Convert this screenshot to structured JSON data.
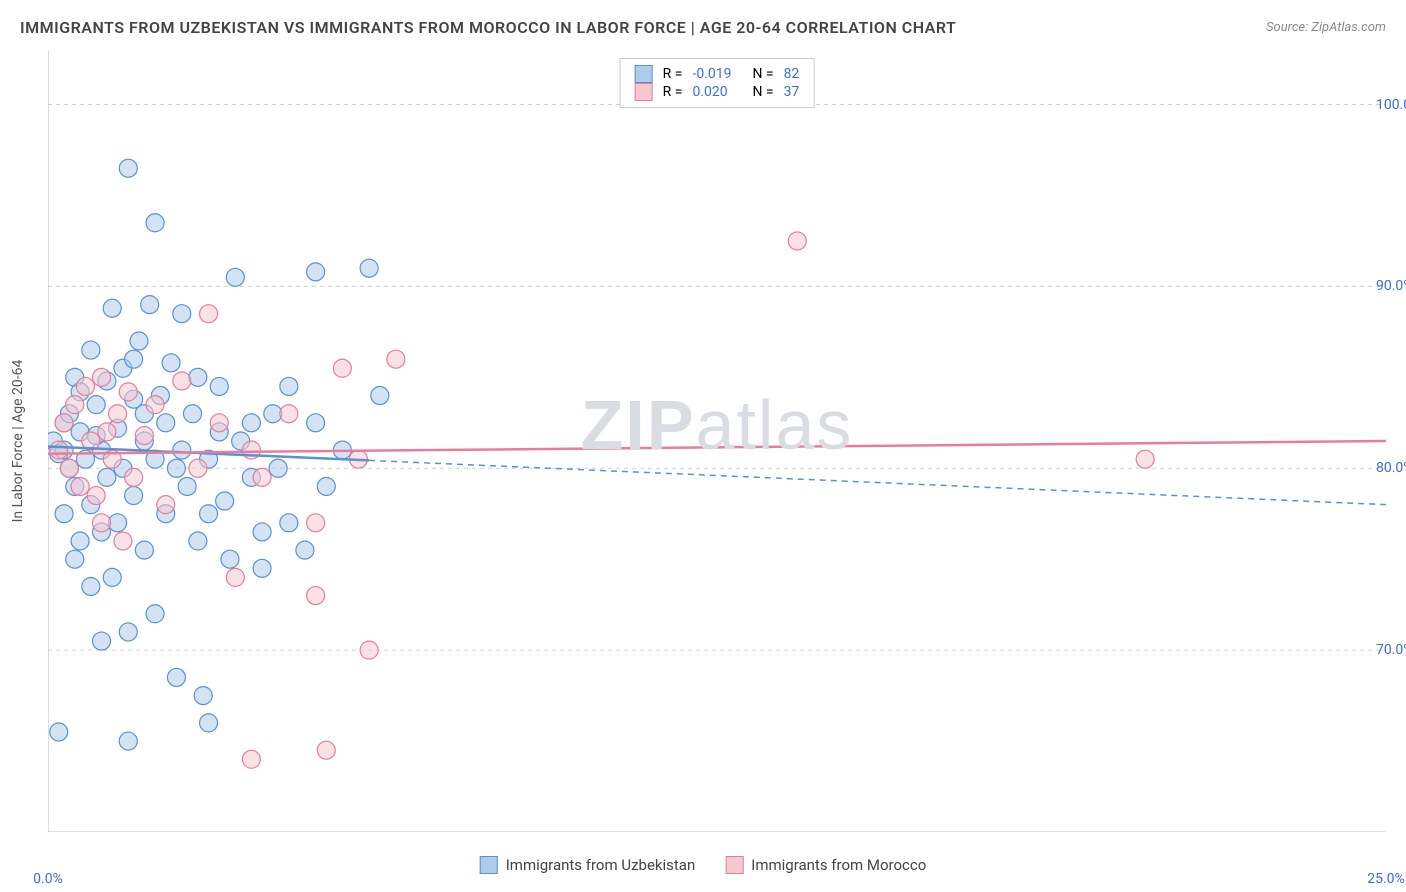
{
  "title": "IMMIGRANTS FROM UZBEKISTAN VS IMMIGRANTS FROM MOROCCO IN LABOR FORCE | AGE 20-64 CORRELATION CHART",
  "source": "Source: ZipAtlas.com",
  "watermark_bold": "ZIP",
  "watermark_light": "atlas",
  "y_axis_label": "In Labor Force | Age 20-64",
  "chart": {
    "type": "scatter",
    "xlim": [
      0,
      25
    ],
    "ylim": [
      60,
      103
    ],
    "x_ticks": [
      0,
      2,
      5,
      7.5,
      10,
      12.5,
      15,
      17.5,
      20,
      22.5,
      25
    ],
    "x_tick_labels": {
      "0": "0.0%",
      "25": "25.0%"
    },
    "y_gridlines": [
      70,
      80,
      90,
      100
    ],
    "y_tick_labels": {
      "70": "70.0%",
      "80": "80.0%",
      "90": "90.0%",
      "100": "100.0%"
    },
    "marker_radius": 9,
    "marker_opacity": 0.55,
    "grid_color": "#d0d0d0",
    "axis_color": "#bbbbbb",
    "background_color": "#ffffff"
  },
  "series": [
    {
      "name": "Immigrants from Uzbekistan",
      "color_fill": "#aecce9",
      "color_stroke": "#5a92d0",
      "R": "-0.019",
      "N": "82",
      "trend": {
        "x1": 0,
        "y1": 81.2,
        "x2": 25,
        "y2": 78.0,
        "solid_until_x": 6
      },
      "points": [
        [
          0.1,
          81.5
        ],
        [
          0.2,
          80.8
        ],
        [
          0.3,
          82.5
        ],
        [
          0.3,
          81.0
        ],
        [
          0.4,
          83.0
        ],
        [
          0.5,
          79.0
        ],
        [
          0.5,
          85.0
        ],
        [
          0.6,
          84.2
        ],
        [
          0.6,
          82.0
        ],
        [
          0.7,
          80.5
        ],
        [
          0.8,
          86.5
        ],
        [
          0.8,
          78.0
        ],
        [
          0.9,
          83.5
        ],
        [
          1.0,
          81.0
        ],
        [
          1.0,
          76.5
        ],
        [
          1.1,
          84.8
        ],
        [
          1.1,
          79.5
        ],
        [
          1.2,
          88.8
        ],
        [
          1.3,
          82.2
        ],
        [
          1.3,
          77.0
        ],
        [
          1.4,
          85.5
        ],
        [
          1.4,
          80.0
        ],
        [
          1.5,
          96.5
        ],
        [
          1.5,
          71.0
        ],
        [
          1.6,
          83.8
        ],
        [
          1.6,
          78.5
        ],
        [
          1.7,
          87.0
        ],
        [
          1.8,
          81.5
        ],
        [
          1.8,
          75.5
        ],
        [
          1.9,
          89.0
        ],
        [
          2.0,
          93.5
        ],
        [
          2.0,
          80.5
        ],
        [
          2.0,
          72.0
        ],
        [
          2.1,
          84.0
        ],
        [
          2.2,
          77.5
        ],
        [
          2.3,
          85.8
        ],
        [
          2.4,
          68.5
        ],
        [
          2.5,
          81.0
        ],
        [
          2.5,
          88.5
        ],
        [
          2.6,
          79.0
        ],
        [
          2.7,
          83.0
        ],
        [
          2.8,
          76.0
        ],
        [
          2.9,
          67.5
        ],
        [
          3.0,
          80.5
        ],
        [
          3.0,
          66.0
        ],
        [
          3.2,
          84.5
        ],
        [
          3.3,
          78.2
        ],
        [
          3.4,
          75.0
        ],
        [
          3.5,
          90.5
        ],
        [
          3.6,
          81.5
        ],
        [
          3.8,
          79.5
        ],
        [
          4.0,
          76.5
        ],
        [
          4.0,
          74.5
        ],
        [
          4.2,
          83.0
        ],
        [
          4.3,
          80.0
        ],
        [
          4.5,
          77.0
        ],
        [
          4.8,
          75.5
        ],
        [
          5.0,
          82.5
        ],
        [
          5.0,
          90.8
        ],
        [
          5.2,
          79.0
        ],
        [
          5.5,
          81.0
        ],
        [
          6.0,
          91.0
        ],
        [
          6.2,
          84.0
        ],
        [
          0.2,
          65.5
        ],
        [
          1.0,
          70.5
        ],
        [
          1.5,
          65.0
        ],
        [
          0.5,
          75.0
        ],
        [
          0.8,
          73.5
        ],
        [
          1.2,
          74.0
        ],
        [
          2.2,
          82.5
        ],
        [
          2.8,
          85.0
        ],
        [
          3.2,
          82.0
        ],
        [
          0.3,
          77.5
        ],
        [
          0.6,
          76.0
        ],
        [
          1.8,
          83.0
        ],
        [
          2.4,
          80.0
        ],
        [
          3.0,
          77.5
        ],
        [
          3.8,
          82.5
        ],
        [
          4.5,
          84.5
        ],
        [
          0.4,
          80.0
        ],
        [
          0.9,
          81.8
        ],
        [
          1.6,
          86.0
        ]
      ]
    },
    {
      "name": "Immigrants from Morocco",
      "color_fill": "#f5c8d2",
      "color_stroke": "#e87d9a",
      "R": "0.020",
      "N": "37",
      "trend": {
        "x1": 0,
        "y1": 80.8,
        "x2": 25,
        "y2": 81.5,
        "solid_until_x": 25
      },
      "points": [
        [
          0.2,
          81.0
        ],
        [
          0.3,
          82.5
        ],
        [
          0.4,
          80.0
        ],
        [
          0.5,
          83.5
        ],
        [
          0.6,
          79.0
        ],
        [
          0.7,
          84.5
        ],
        [
          0.8,
          81.5
        ],
        [
          0.9,
          78.5
        ],
        [
          1.0,
          85.0
        ],
        [
          1.1,
          82.0
        ],
        [
          1.2,
          80.5
        ],
        [
          1.3,
          83.0
        ],
        [
          1.5,
          84.2
        ],
        [
          1.6,
          79.5
        ],
        [
          1.8,
          81.8
        ],
        [
          2.0,
          83.5
        ],
        [
          2.2,
          78.0
        ],
        [
          2.5,
          84.8
        ],
        [
          2.8,
          80.0
        ],
        [
          3.0,
          88.5
        ],
        [
          3.2,
          82.5
        ],
        [
          3.5,
          74.0
        ],
        [
          3.8,
          81.0
        ],
        [
          4.0,
          79.5
        ],
        [
          4.5,
          83.0
        ],
        [
          5.0,
          77.0
        ],
        [
          5.2,
          64.5
        ],
        [
          5.5,
          85.5
        ],
        [
          5.8,
          80.5
        ],
        [
          6.0,
          70.0
        ],
        [
          6.5,
          86.0
        ],
        [
          3.8,
          64.0
        ],
        [
          5.0,
          73.0
        ],
        [
          14.0,
          92.5
        ],
        [
          20.5,
          80.5
        ],
        [
          1.0,
          77.0
        ],
        [
          1.4,
          76.0
        ]
      ]
    }
  ],
  "legend_top_label_R": "R =",
  "legend_top_label_N": "N ="
}
